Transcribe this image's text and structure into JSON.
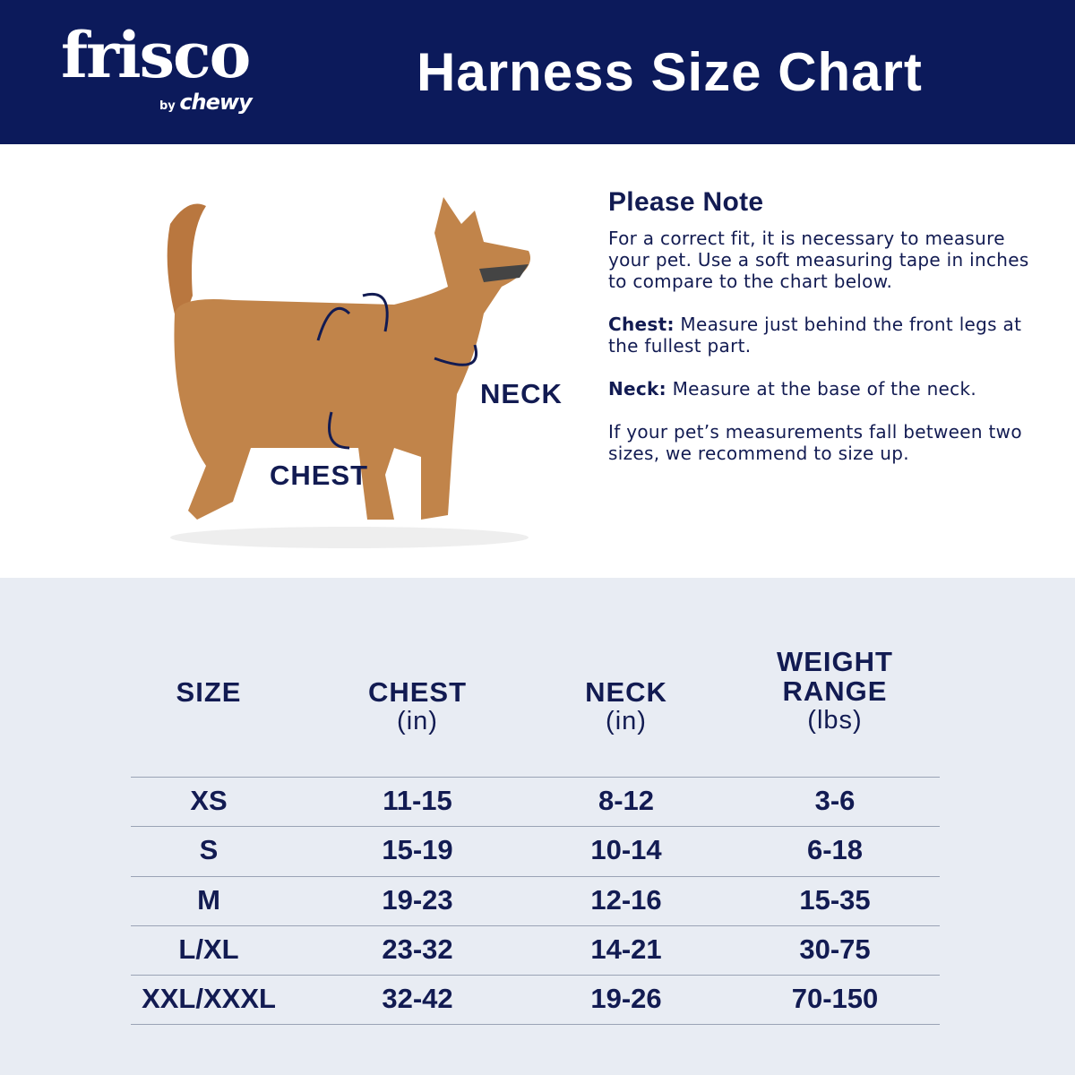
{
  "header": {
    "logo": "frisco",
    "logo_sub_by": "by",
    "logo_sub_brand": "chewy",
    "title": "Harness Size Chart"
  },
  "colors": {
    "navy": "#0c1a5b",
    "text": "#121b52",
    "table_bg": "#e8ecf3"
  },
  "diagram": {
    "neck_label": "NECK",
    "chest_label": "CHEST"
  },
  "note": {
    "heading": "Please Note",
    "intro": "For a correct fit, it is necessary to measure your pet. Use a soft measuring tape in inches to compare to the chart below.",
    "chest_label": "Chest:",
    "chest_text": " Measure just behind the front legs at the fullest part.",
    "neck_label": "Neck:",
    "neck_text": " Measure at the base of the neck.",
    "between": "If your pet’s measurements fall between two sizes, we recommend to size up."
  },
  "table": {
    "headers": [
      {
        "label": "SIZE",
        "unit": ""
      },
      {
        "label": "CHEST",
        "unit": "(in)"
      },
      {
        "label": "NECK",
        "unit": "(in)"
      },
      {
        "label": "WEIGHT RANGE",
        "unit": "(lbs)"
      }
    ],
    "rows": [
      [
        "XS",
        "11-15",
        "8-12",
        "3-6"
      ],
      [
        "S",
        "15-19",
        "10-14",
        "6-18"
      ],
      [
        "M",
        "19-23",
        "12-16",
        "15-35"
      ],
      [
        "L/XL",
        "23-32",
        "14-21",
        "30-75"
      ],
      [
        "XXL/XXXL",
        "32-42",
        "19-26",
        "70-150"
      ]
    ]
  }
}
